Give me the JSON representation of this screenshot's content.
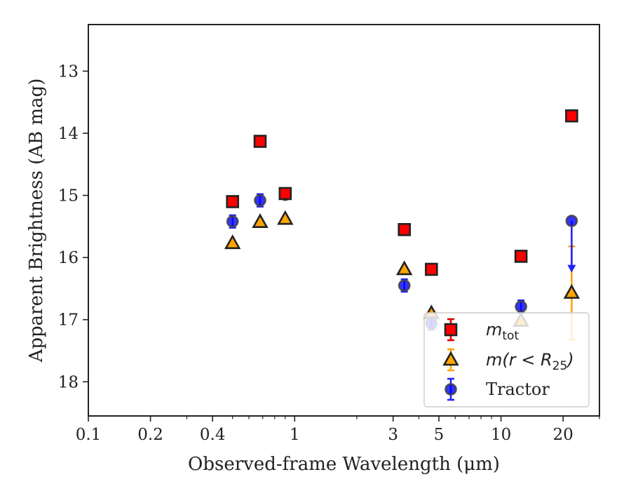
{
  "chart_data": {
    "type": "scatter",
    "xlabel": "Observed-frame Wavelength (μm)",
    "ylabel": "Apparent Brightness (AB mag)",
    "xscale": "log",
    "xlim": [
      0.1,
      30
    ],
    "ylim": [
      18.55,
      12.25
    ],
    "y_inverted": true,
    "x_ticks": [
      0.1,
      0.2,
      0.4,
      1,
      3,
      5,
      10,
      20
    ],
    "x_tick_labels": [
      "0.1",
      "0.2",
      "0.4",
      "1",
      "3",
      "5",
      "10",
      "20"
    ],
    "y_ticks": [
      13,
      14,
      15,
      16,
      17,
      18
    ],
    "y_tick_labels": [
      "13",
      "14",
      "15",
      "16",
      "17",
      "18"
    ],
    "grid": false,
    "legend_position": "bottom-right",
    "legend": {
      "m_tot": {
        "base": "m",
        "sub": "tot"
      },
      "m_r25": {
        "base": "m(r < R",
        "sub": "25",
        "tail": ")"
      },
      "tractor": {
        "text": "Tractor"
      }
    },
    "series": [
      {
        "key": "m_tot",
        "marker": "square",
        "fill": "#ff0000",
        "errcolor": "#dd0000",
        "points": [
          {
            "x": 0.5,
            "y": 15.1,
            "yerr": 0.05
          },
          {
            "x": 0.68,
            "y": 14.13,
            "yerr": 0.04
          },
          {
            "x": 0.9,
            "y": 14.97,
            "yerr": 0.05
          },
          {
            "x": 3.4,
            "y": 15.55,
            "yerr": 0.04
          },
          {
            "x": 4.6,
            "y": 16.19,
            "yerr": 0.04
          },
          {
            "x": 12.5,
            "y": 15.98,
            "yerr": 0.05
          },
          {
            "x": 22.0,
            "y": 13.72,
            "yerr": 0.04
          }
        ]
      },
      {
        "key": "m_r25",
        "marker": "triangle",
        "fill": "#ffa500",
        "errcolor": "#ffa500",
        "points": [
          {
            "x": 0.5,
            "y": 15.77,
            "yerr": 0.02
          },
          {
            "x": 0.68,
            "y": 15.43,
            "yerr": 0.02
          },
          {
            "x": 0.9,
            "y": 15.38,
            "yerr": 0.02
          },
          {
            "x": 3.4,
            "y": 16.19,
            "yerr": 0.02
          },
          {
            "x": 4.6,
            "y": 16.9,
            "yerr": 0.03
          },
          {
            "x": 12.5,
            "y": 17.02,
            "yerr": 0.05
          },
          {
            "x": 22.0,
            "y": 16.57,
            "yerr": 0.75
          }
        ]
      },
      {
        "key": "tractor",
        "marker": "circle",
        "fill": "#0000ff",
        "errcolor": "#2222ff",
        "points": [
          {
            "x": 0.5,
            "y": 15.42,
            "yerr": 0.1
          },
          {
            "x": 0.68,
            "y": 15.08,
            "yerr": 0.1
          },
          {
            "x": 0.9,
            "y": 14.99,
            "yerr": 0.06
          },
          {
            "x": 3.4,
            "y": 16.45,
            "yerr": 0.1
          },
          {
            "x": 4.6,
            "y": 17.06,
            "yerr": 0.1
          },
          {
            "x": 12.5,
            "y": 16.79,
            "yerr": 0.1
          },
          {
            "x": 22.0,
            "y": 15.41,
            "yerr": 0.05,
            "upper_limit_to": 16.22
          }
        ]
      }
    ]
  }
}
